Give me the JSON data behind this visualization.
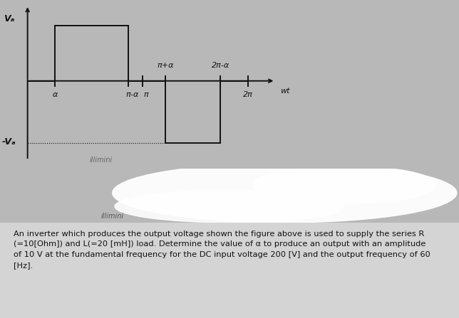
{
  "fig_width": 6.44,
  "fig_height": 4.47,
  "bg_color": "#b8b8b8",
  "top_bg": "#b8b8b8",
  "bottom_bg": "#c8c8c8",
  "waveform_color": "#111111",
  "Va_label": "Vₐ",
  "neg_Va_label": "-Vₐ",
  "alpha_label": "α",
  "pi_minus_alpha_label": "π-α  π",
  "pi_plus_alpha_label": "π+α",
  "two_pi_minus_alpha_label": "2π-α",
  "two_pi_label": "2π",
  "wt_label": "wt",
  "watermark": "illimini",
  "text_block_line1": "An inverter which produces the output voltage shown the figure above is used to supply the series R",
  "text_block_line2": "(=10[Ohm]) and L(=20 [mH]) load. Determine the value of α to produce an output with an amplitude",
  "text_block_line3": "of 10 V at the fundamental frequency for the DC input voltage 200 [V] and the output frequency of 60",
  "text_block_line4": "[Hz]."
}
